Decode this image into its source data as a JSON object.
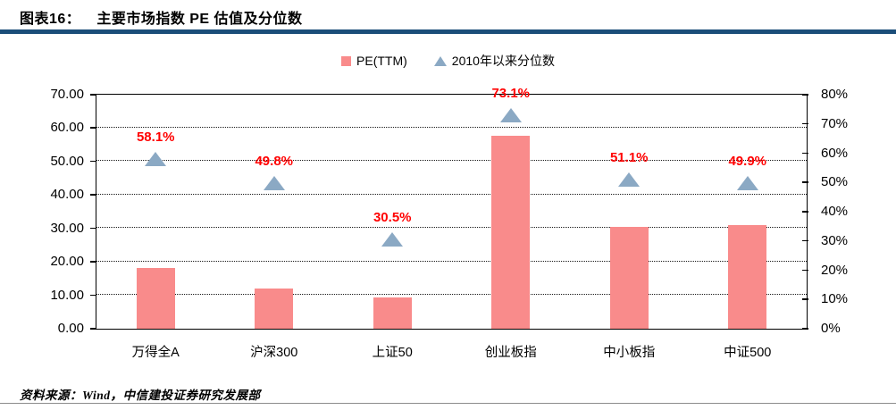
{
  "header": {
    "figure_label": "图表16：",
    "title": "主要市场指数 PE 估值及分位数"
  },
  "legend": {
    "items": [
      {
        "label": "PE(TTM)",
        "marker": "square"
      },
      {
        "label": "2010年以来分位数",
        "marker": "triangle"
      }
    ]
  },
  "chart_data": {
    "type": "bar",
    "title": "主要市场指数 PE 估值及分位数",
    "categories": [
      "万得全A",
      "沪深300",
      "上证50",
      "创业板指",
      "中小板指",
      "中证500"
    ],
    "series": [
      {
        "name": "PE(TTM)",
        "type": "bar",
        "axis": "left",
        "values": [
          18.2,
          12.0,
          9.4,
          57.8,
          30.4,
          30.9
        ]
      },
      {
        "name": "2010年以来分位数",
        "type": "scatter",
        "marker": "triangle",
        "axis": "right",
        "values": [
          58.1,
          49.8,
          30.5,
          73.1,
          51.1,
          49.9
        ],
        "data_labels": [
          "58.1%",
          "49.8%",
          "30.5%",
          "73.1%",
          "51.1%",
          "49.9%"
        ]
      }
    ],
    "left_axis": {
      "min": 0,
      "max": 70,
      "tick_step": 10,
      "tick_labels": [
        "0.00",
        "10.00",
        "20.00",
        "30.00",
        "40.00",
        "50.00",
        "60.00",
        "70.00"
      ]
    },
    "right_axis": {
      "min": 0,
      "max": 80,
      "tick_step": 10,
      "tick_labels": [
        "0%",
        "10%",
        "20%",
        "30%",
        "40%",
        "50%",
        "60%",
        "70%",
        "80%"
      ]
    },
    "grid": "horizontal-dotted",
    "legend_position": "top-center"
  },
  "footer": {
    "source": "资料来源：Wind，中信建投证券研究发展部"
  },
  "colors": {
    "bar": "#f98b8b",
    "triangle": "#8ba9c4",
    "data_label": "#ff0000",
    "header_rule": "#1b4e79",
    "axis": "#000000",
    "bottom_rule": "#8c8c8c"
  }
}
